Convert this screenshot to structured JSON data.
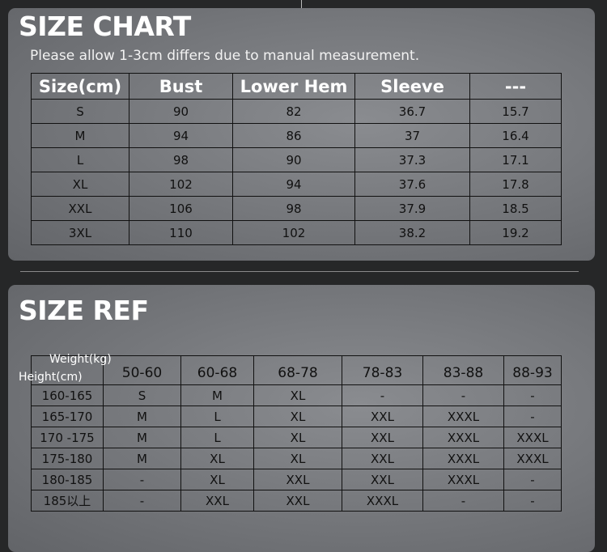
{
  "size_chart": {
    "title": "SIZE CHART",
    "note": "Please allow 1-3cm differs due to manual measurement.",
    "headers": [
      "Size(cm)",
      "Bust",
      "Lower Hem",
      "Sleeve",
      "---"
    ],
    "rows": [
      [
        "S",
        "90",
        "82",
        "36.7",
        "15.7"
      ],
      [
        "M",
        "94",
        "86",
        "37",
        "16.4"
      ],
      [
        "L",
        "98",
        "90",
        "37.3",
        "17.1"
      ],
      [
        "XL",
        "102",
        "94",
        "37.6",
        "17.8"
      ],
      [
        "XXL",
        "106",
        "98",
        "37.9",
        "18.5"
      ],
      [
        "3XL",
        "110",
        "102",
        "38.2",
        "19.2"
      ]
    ]
  },
  "size_ref": {
    "title": "SIZE REF",
    "weight_label": "Weight(kg)",
    "height_label": "Height(cm)",
    "headers": [
      "50-60",
      "60-68",
      "68-78",
      "78-83",
      "83-88",
      "88-93"
    ],
    "rows": [
      [
        "160-165",
        "S",
        "M",
        "XL",
        "-",
        "-",
        "-"
      ],
      [
        "165-170",
        "M",
        "L",
        "XL",
        "XXL",
        "XXXL",
        "-"
      ],
      [
        "170 -175",
        "M",
        "L",
        "XL",
        "XXL",
        "XXXL",
        "XXXL"
      ],
      [
        "175-180",
        "M",
        "XL",
        "XL",
        "XXL",
        "XXXL",
        "XXXL"
      ],
      [
        "180-185",
        "-",
        "XL",
        "XXL",
        "XXL",
        "XXXL",
        "-"
      ],
      [
        "185以上",
        "-",
        "XXL",
        "XXL",
        "XXXL",
        "-",
        "-"
      ]
    ]
  }
}
